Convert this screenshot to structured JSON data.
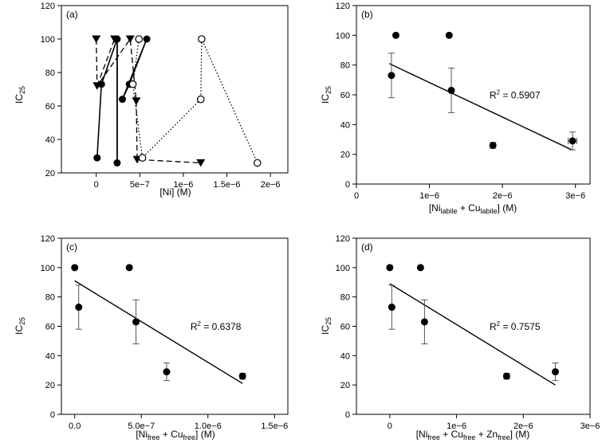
{
  "chart_data": [
    {
      "type": "scatter",
      "panel_label": "(a)",
      "xlabel": "[Ni] (M)",
      "ylabel": "IC25",
      "xlim": [
        -4e-07,
        2.2e-06
      ],
      "ylim": [
        20,
        120
      ],
      "x_ticks": [
        0,
        5e-07,
        1e-06,
        1.5e-06,
        2e-06
      ],
      "x_tick_labels": [
        "0",
        "5e−7",
        "1e−6",
        "1.5e−6",
        "2e−6"
      ],
      "y_ticks": [
        20,
        40,
        60,
        80,
        100,
        120
      ],
      "y_tick_labels": [
        "20",
        "40",
        "60",
        "80",
        "100",
        "120"
      ],
      "grid": false,
      "series": [
        {
          "marker": "filled-circle",
          "line": "solid",
          "segments": [
            [
              [
                1e-08,
                29
              ],
              [
                6e-08,
                73
              ],
              [
                2.4e-07,
                100
              ],
              [
                2.4e-07,
                26
              ]
            ],
            [
              [
                2.4e-07,
                26
              ],
              [
                2.4e-07,
                100
              ]
            ],
            [
              [
                3e-07,
                64
              ],
              [
                3.8e-07,
                73
              ],
              [
                5.8e-07,
                100
              ],
              [
                3e-07,
                64
              ]
            ]
          ]
        },
        {
          "marker": "triangle-down",
          "line": "dashed",
          "segments": [
            [
              [
                0,
                100
              ],
              [
                1e-08,
                72
              ],
              [
                3.9e-07,
                100
              ],
              [
                4.6e-07,
                63
              ],
              [
                4.7e-07,
                28
              ],
              [
                1.2e-06,
                26
              ]
            ],
            [
              [
                1e-08,
                72
              ],
              [
                2.1e-07,
                100
              ]
            ]
          ]
        },
        {
          "marker": "open-circle",
          "line": "dotted",
          "segments": [
            [
              [
                4.9e-07,
                100
              ],
              [
                4.2e-07,
                73
              ],
              [
                5.3e-07,
                29
              ],
              [
                1.2e-06,
                64
              ],
              [
                1.21e-06,
                100
              ],
              [
                1.85e-06,
                26
              ]
            ]
          ]
        }
      ]
    },
    {
      "type": "scatter",
      "panel_label": "(b)",
      "xlabel": "[Ni_labile + Cu_labile] (M)",
      "xlabel_parts": {
        "open": "[Ni",
        "sub1": "labile",
        "plus": " + Cu",
        "sub2": "labile",
        "close": "] (M)"
      },
      "ylabel": "IC25",
      "xlim": [
        0,
        3.2e-06
      ],
      "ylim": [
        0,
        120
      ],
      "x_ticks": [
        0,
        1e-06,
        2e-06,
        3e-06
      ],
      "x_tick_labels": [
        "0",
        "1e−6",
        "2e−6",
        "3e−6"
      ],
      "y_ticks": [
        0,
        20,
        40,
        60,
        80,
        100,
        120
      ],
      "y_tick_labels": [
        "0",
        "20",
        "40",
        "60",
        "80",
        "100",
        "120"
      ],
      "grid": false,
      "points": [
        {
          "x": 4.8e-07,
          "y": 73,
          "err": 15
        },
        {
          "x": 5.4e-07,
          "y": 100
        },
        {
          "x": 1.27e-06,
          "y": 100
        },
        {
          "x": 1.3e-06,
          "y": 63,
          "err": 15
        },
        {
          "x": 1.87e-06,
          "y": 26,
          "err": 2
        },
        {
          "x": 2.96e-06,
          "y": 29,
          "err": 6,
          "xerr": 6e-08
        }
      ],
      "fit": {
        "x": [
          4.5e-07,
          2.95e-06
        ],
        "y": [
          81,
          23
        ]
      },
      "r2_prefix": "R",
      "r2_sup": "2",
      "r2_value": " = 0.5907"
    },
    {
      "type": "scatter",
      "panel_label": "(c)",
      "xlabel": "[Ni_free + Cu_free] (M)",
      "xlabel_parts": {
        "open": "[Ni",
        "sub1": "free",
        "plus": " + Cu",
        "sub2": "free",
        "close": "] (M)"
      },
      "ylabel": "IC25",
      "xlim": [
        -1e-07,
        1.6e-06
      ],
      "ylim": [
        0,
        120
      ],
      "x_ticks": [
        0,
        5e-07,
        1e-06,
        1.5e-06
      ],
      "x_tick_labels": [
        "0.0",
        "5.0e−7",
        "1.0e−6",
        "1.5e−6"
      ],
      "y_ticks": [
        0,
        20,
        40,
        60,
        80,
        100,
        120
      ],
      "y_tick_labels": [
        "0",
        "20",
        "40",
        "60",
        "80",
        "100",
        "120"
      ],
      "grid": false,
      "points": [
        {
          "x": 0,
          "y": 100
        },
        {
          "x": 3e-08,
          "y": 73,
          "err": 15
        },
        {
          "x": 4.1e-07,
          "y": 100
        },
        {
          "x": 4.6e-07,
          "y": 63,
          "err": 15
        },
        {
          "x": 6.9e-07,
          "y": 29,
          "err": 6
        },
        {
          "x": 1.26e-06,
          "y": 26,
          "err": 2
        }
      ],
      "fit": {
        "x": [
          0,
          1.26e-06
        ],
        "y": [
          91,
          21
        ]
      },
      "r2_prefix": "R",
      "r2_sup": "2",
      "r2_value": " = 0.6378"
    },
    {
      "type": "scatter",
      "panel_label": "(d)",
      "xlabel": "[Ni_free + Cu_free + Zn_free] (M)",
      "xlabel_parts": {
        "open": "[Ni",
        "sub1": "free",
        "plus": " + Cu",
        "sub2": "free",
        "plus2": " + Zn",
        "sub3": "free",
        "close": "] (M)"
      },
      "ylabel": "IC25",
      "xlim": [
        -5e-07,
        3e-06
      ],
      "ylim": [
        0,
        120
      ],
      "x_ticks": [
        0,
        1e-06,
        2e-06,
        3e-06
      ],
      "x_tick_labels": [
        "0",
        "1e−6",
        "2e−6",
        "3e−6"
      ],
      "y_ticks": [
        0,
        20,
        40,
        60,
        80,
        100,
        120
      ],
      "y_tick_labels": [
        "0",
        "20",
        "40",
        "60",
        "80",
        "100",
        "120"
      ],
      "grid": false,
      "points": [
        {
          "x": 0,
          "y": 100
        },
        {
          "x": 3e-08,
          "y": 73,
          "err": 15
        },
        {
          "x": 4.6e-07,
          "y": 100
        },
        {
          "x": 5.2e-07,
          "y": 63,
          "err": 15
        },
        {
          "x": 1.75e-06,
          "y": 26,
          "err": 2
        },
        {
          "x": 2.48e-06,
          "y": 29,
          "err": 6
        }
      ],
      "fit": {
        "x": [
          0,
          2.48e-06
        ],
        "y": [
          89,
          20
        ]
      },
      "r2_prefix": "R",
      "r2_sup": "2",
      "r2_value": " = 0.7575"
    }
  ],
  "labels": {
    "ylabel_main": "IC",
    "ylabel_sub": "25"
  }
}
